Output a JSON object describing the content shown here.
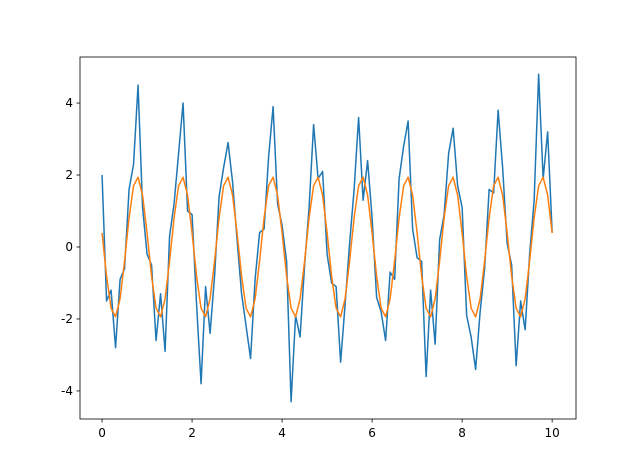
{
  "chart_data": {
    "type": "line",
    "x": [
      0,
      0.1,
      0.2,
      0.3,
      0.4,
      0.5,
      0.6,
      0.7,
      0.8,
      0.9,
      1,
      1.1,
      1.2,
      1.3,
      1.4,
      1.5,
      1.6,
      1.7,
      1.8,
      1.9,
      2,
      2.1,
      2.2,
      2.3,
      2.4,
      2.5,
      2.6,
      2.7,
      2.8,
      2.9,
      3,
      3.1,
      3.2,
      3.3,
      3.4,
      3.5,
      3.6,
      3.7,
      3.8,
      3.9,
      4,
      4.1,
      4.2,
      4.3,
      4.4,
      4.5,
      4.6,
      4.7,
      4.8,
      4.9,
      5,
      5.1,
      5.2,
      5.3,
      5.4,
      5.5,
      5.6,
      5.7,
      5.8,
      5.9,
      6,
      6.1,
      6.2,
      6.3,
      6.4,
      6.5,
      6.6,
      6.7,
      6.8,
      6.9,
      7,
      7.1,
      7.2,
      7.3,
      7.4,
      7.5,
      7.6,
      7.7,
      7.8,
      7.9,
      8,
      8.1,
      8.2,
      8.3,
      8.4,
      8.5,
      8.6,
      8.7,
      8.8,
      8.9,
      9,
      9.1,
      9.2,
      9.3,
      9.4,
      9.5,
      9.6,
      9.7,
      9.8,
      9.9,
      10
    ],
    "series": [
      {
        "color": "#1f77b4",
        "values": [
          2.0,
          -1.5,
          -1.2,
          -2.8,
          -0.9,
          -0.6,
          1.6,
          2.3,
          4.5,
          1.1,
          -0.2,
          -0.5,
          -2.6,
          -1.3,
          -2.9,
          0.3,
          1.2,
          2.6,
          4.0,
          1.0,
          0.9,
          -1.6,
          -3.8,
          -1.1,
          -2.4,
          -0.8,
          1.4,
          2.2,
          2.9,
          1.8,
          0.2,
          -1.3,
          -2.2,
          -3.1,
          -0.9,
          0.4,
          0.5,
          2.5,
          3.9,
          1.2,
          0.6,
          -0.4,
          -4.3,
          -1.9,
          -2.5,
          -0.5,
          1.1,
          3.4,
          1.9,
          2.1,
          -0.2,
          -1.0,
          -1.1,
          -3.2,
          -1.6,
          0.1,
          1.6,
          3.6,
          1.3,
          2.4,
          0.8,
          -1.4,
          -1.8,
          -2.6,
          -0.7,
          -0.9,
          1.9,
          2.8,
          3.5,
          0.5,
          -0.3,
          -0.4,
          -3.6,
          -1.2,
          -2.7,
          0.2,
          0.9,
          2.6,
          3.3,
          1.7,
          1.1,
          -1.9,
          -2.5,
          -3.4,
          -1.8,
          -0.6,
          1.6,
          1.5,
          3.8,
          2.2,
          0.1,
          -0.5,
          -3.3,
          -1.5,
          -2.3,
          -0.2,
          1.3,
          4.8,
          1.9,
          3.2,
          0.4
        ]
      },
      {
        "color": "#ff7f0e",
        "values": [
          0.39,
          -0.81,
          -1.7,
          -1.94,
          -1.44,
          -0.39,
          0.81,
          1.7,
          1.94,
          1.44,
          0.39,
          -0.81,
          -1.7,
          -1.94,
          -1.44,
          -0.39,
          0.81,
          1.7,
          1.94,
          1.44,
          0.39,
          -0.81,
          -1.7,
          -1.94,
          -1.44,
          -0.39,
          0.81,
          1.7,
          1.94,
          1.44,
          0.39,
          -0.81,
          -1.7,
          -1.94,
          -1.44,
          -0.39,
          0.81,
          1.7,
          1.94,
          1.44,
          0.39,
          -0.81,
          -1.7,
          -1.94,
          -1.44,
          -0.39,
          0.81,
          1.7,
          1.94,
          1.44,
          0.39,
          -0.81,
          -1.7,
          -1.94,
          -1.44,
          -0.39,
          0.81,
          1.7,
          1.94,
          1.44,
          0.39,
          -0.81,
          -1.7,
          -1.94,
          -1.44,
          -0.39,
          0.81,
          1.7,
          1.94,
          1.44,
          0.39,
          -0.81,
          -1.7,
          -1.94,
          -1.44,
          -0.39,
          0.81,
          1.7,
          1.94,
          1.44,
          0.39,
          -0.81,
          -1.7,
          -1.94,
          -1.44,
          -0.39,
          0.81,
          1.7,
          1.94,
          1.44,
          0.39,
          -0.81,
          -1.7,
          -1.94,
          -1.44,
          -0.39,
          0.81,
          1.7,
          1.94,
          1.44,
          0.39
        ]
      }
    ],
    "xlim": [
      -0.49,
      10.53
    ],
    "xticks": [
      0,
      2,
      4,
      6,
      8,
      10
    ],
    "ylim": [
      -4.78,
      5.28
    ],
    "yticks": [
      -4,
      -2,
      0,
      2,
      4
    ]
  }
}
